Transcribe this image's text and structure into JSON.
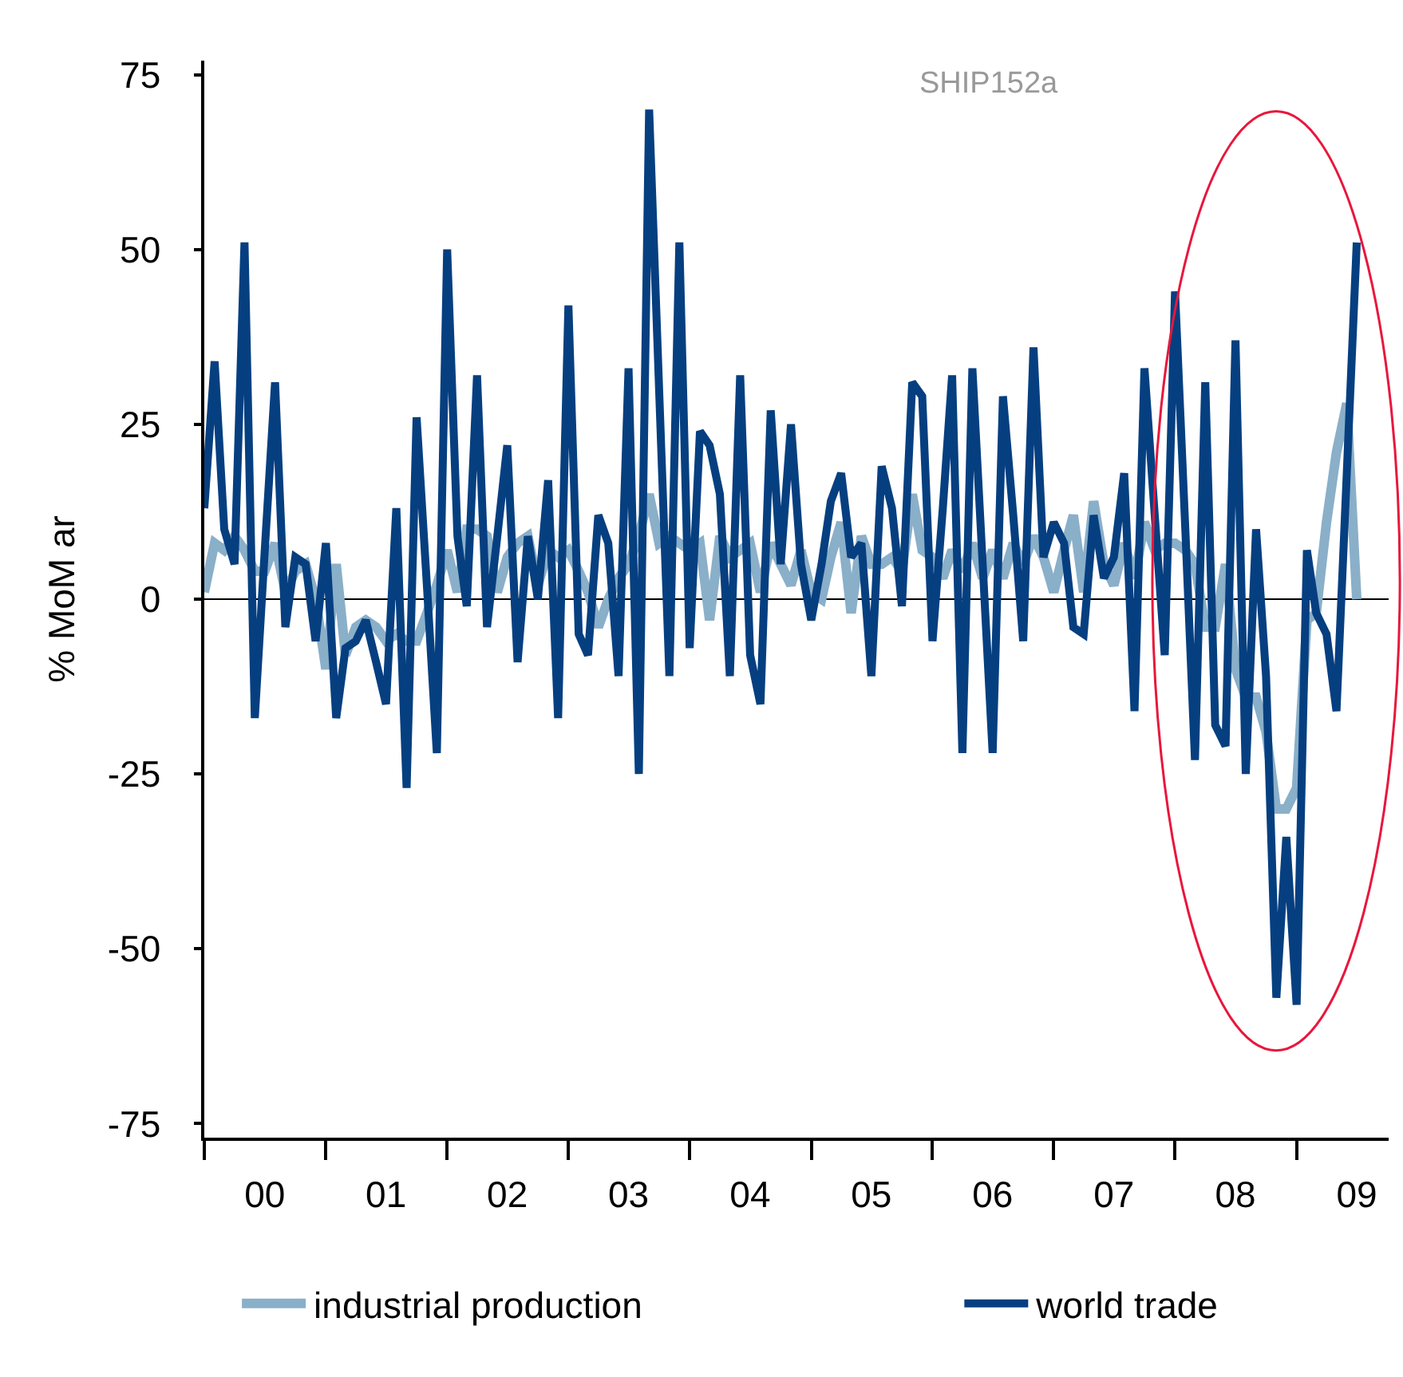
{
  "chart_data": {
    "type": "line",
    "ylabel": "% MoM ar",
    "annotations": [
      "SHIP152a"
    ],
    "x": [
      "2000-01",
      "2000-02",
      "2000-03",
      "2000-04",
      "2000-05",
      "2000-06",
      "2000-07",
      "2000-08",
      "2000-09",
      "2000-10",
      "2000-11",
      "2000-12",
      "2001-01",
      "2001-02",
      "2001-03",
      "2001-04",
      "2001-05",
      "2001-06",
      "2001-07",
      "2001-08",
      "2001-09",
      "2001-10",
      "2001-11",
      "2001-12",
      "2002-01",
      "2002-02",
      "2002-03",
      "2002-04",
      "2002-05",
      "2002-06",
      "2002-07",
      "2002-08",
      "2002-09",
      "2002-10",
      "2002-11",
      "2002-12",
      "2003-01",
      "2003-02",
      "2003-03",
      "2003-04",
      "2003-05",
      "2003-06",
      "2003-07",
      "2003-08",
      "2003-09",
      "2003-10",
      "2003-11",
      "2003-12",
      "2004-01",
      "2004-02",
      "2004-03",
      "2004-04",
      "2004-05",
      "2004-06",
      "2004-07",
      "2004-08",
      "2004-09",
      "2004-10",
      "2004-11",
      "2004-12",
      "2005-01",
      "2005-02",
      "2005-03",
      "2005-04",
      "2005-05",
      "2005-06",
      "2005-07",
      "2005-08",
      "2005-09",
      "2005-10",
      "2005-11",
      "2005-12",
      "2006-01",
      "2006-02",
      "2006-03",
      "2006-04",
      "2006-05",
      "2006-06",
      "2006-07",
      "2006-08",
      "2006-09",
      "2006-10",
      "2006-11",
      "2006-12",
      "2007-01",
      "2007-02",
      "2007-03",
      "2007-04",
      "2007-05",
      "2007-06",
      "2007-07",
      "2007-08",
      "2007-09",
      "2007-10",
      "2007-11",
      "2007-12",
      "2008-01",
      "2008-02",
      "2008-03",
      "2008-04",
      "2008-05",
      "2008-06",
      "2008-07",
      "2008-08",
      "2008-09",
      "2008-10",
      "2008-11",
      "2008-12",
      "2009-01",
      "2009-02",
      "2009-03",
      "2009-04",
      "2009-05",
      "2009-06",
      "2009-07"
    ],
    "series": [
      {
        "name": "industrial production",
        "color": "#8aafc9",
        "values": [
          1,
          8,
          7,
          9,
          7,
          4,
          4,
          8,
          1,
          4,
          5,
          0,
          -10,
          5,
          -8,
          -4,
          -3,
          -4,
          -6,
          -5,
          -6,
          -6,
          -2,
          2,
          7,
          1,
          10,
          10,
          9,
          1,
          6,
          8,
          9,
          2,
          7,
          6,
          7,
          4,
          1,
          -4,
          0,
          3,
          5,
          9,
          15,
          8,
          9,
          8,
          7,
          8,
          -3,
          9,
          6,
          7,
          8,
          1,
          8,
          5,
          2,
          7,
          1,
          0,
          6,
          11,
          -2,
          9,
          5,
          5,
          6,
          4,
          15,
          7,
          6,
          3,
          7,
          4,
          8,
          3,
          7,
          3,
          8,
          5,
          9,
          6,
          1,
          7,
          12,
          1,
          14,
          5,
          2,
          8,
          3,
          11,
          7,
          8,
          8,
          7,
          5,
          -4,
          -4,
          5,
          -10,
          -14,
          -14,
          -19,
          -30,
          -30,
          -27,
          -3,
          -2,
          11,
          21,
          28,
          0
        ]
      },
      {
        "name": "world trade",
        "color": "#063f80",
        "values": [
          13,
          34,
          10,
          5,
          51,
          -17,
          7,
          31,
          -4,
          6,
          5,
          -6,
          8,
          -17,
          -7,
          -6,
          -3,
          -9,
          -15,
          13,
          -27,
          26,
          2,
          -22,
          50,
          9,
          -1,
          32,
          -4,
          9,
          22,
          -9,
          9,
          0,
          17,
          -17,
          42,
          -5,
          -8,
          12,
          8,
          -11,
          33,
          -25,
          70,
          30,
          -11,
          51,
          -7,
          24,
          22,
          15,
          -11,
          32,
          -8,
          -15,
          27,
          5,
          25,
          5,
          -3,
          5,
          14,
          18,
          6,
          8,
          -11,
          19,
          13,
          -1,
          31,
          29,
          -6,
          13,
          32,
          -22,
          33,
          5,
          -22,
          29,
          12,
          -6,
          36,
          6,
          11,
          8,
          -4,
          -5,
          12,
          3,
          6,
          18,
          -16,
          33,
          12,
          -8,
          44,
          10,
          -23,
          31,
          -18,
          -21,
          37,
          -25,
          10,
          -11,
          -57,
          -34,
          -58,
          7,
          -2,
          -5,
          -16,
          18,
          51
        ]
      }
    ],
    "xlim": [
      "2000-01-01",
      "2009-10-05"
    ],
    "xticks": [
      {
        "value": "2000-01-01",
        "label": null
      },
      {
        "value": "2001-01-01",
        "label": null
      },
      {
        "value": "2002-01-01",
        "label": null
      },
      {
        "value": "2003-01-01",
        "label": null
      },
      {
        "value": "2004-01-01",
        "label": null
      },
      {
        "value": "2005-01-01",
        "label": null
      },
      {
        "value": "2006-01-01",
        "label": null
      },
      {
        "value": "2007-01-01",
        "label": null
      },
      {
        "value": "2008-01-01",
        "label": null
      },
      {
        "value": "2009-01-01",
        "label": null
      },
      {
        "value": "2000-07-01",
        "label": "00"
      },
      {
        "value": "2001-07-01",
        "label": "01"
      },
      {
        "value": "2002-07-01",
        "label": "02"
      },
      {
        "value": "2003-07-01",
        "label": "03"
      },
      {
        "value": "2004-07-01",
        "label": "04"
      },
      {
        "value": "2005-07-01",
        "label": "05"
      },
      {
        "value": "2006-07-01",
        "label": "06"
      },
      {
        "value": "2007-07-01",
        "label": "07"
      },
      {
        "value": "2008-07-01",
        "label": "08"
      },
      {
        "value": "2009-07-01",
        "label": "09"
      }
    ],
    "ylim": [
      -77,
      77
    ],
    "yticks": [
      -75,
      -50,
      -25,
      0,
      25,
      50,
      75
    ],
    "ref_lines": [
      {
        "axis": "y",
        "value": 0,
        "color": "#000000"
      }
    ],
    "legend": "bottom"
  }
}
